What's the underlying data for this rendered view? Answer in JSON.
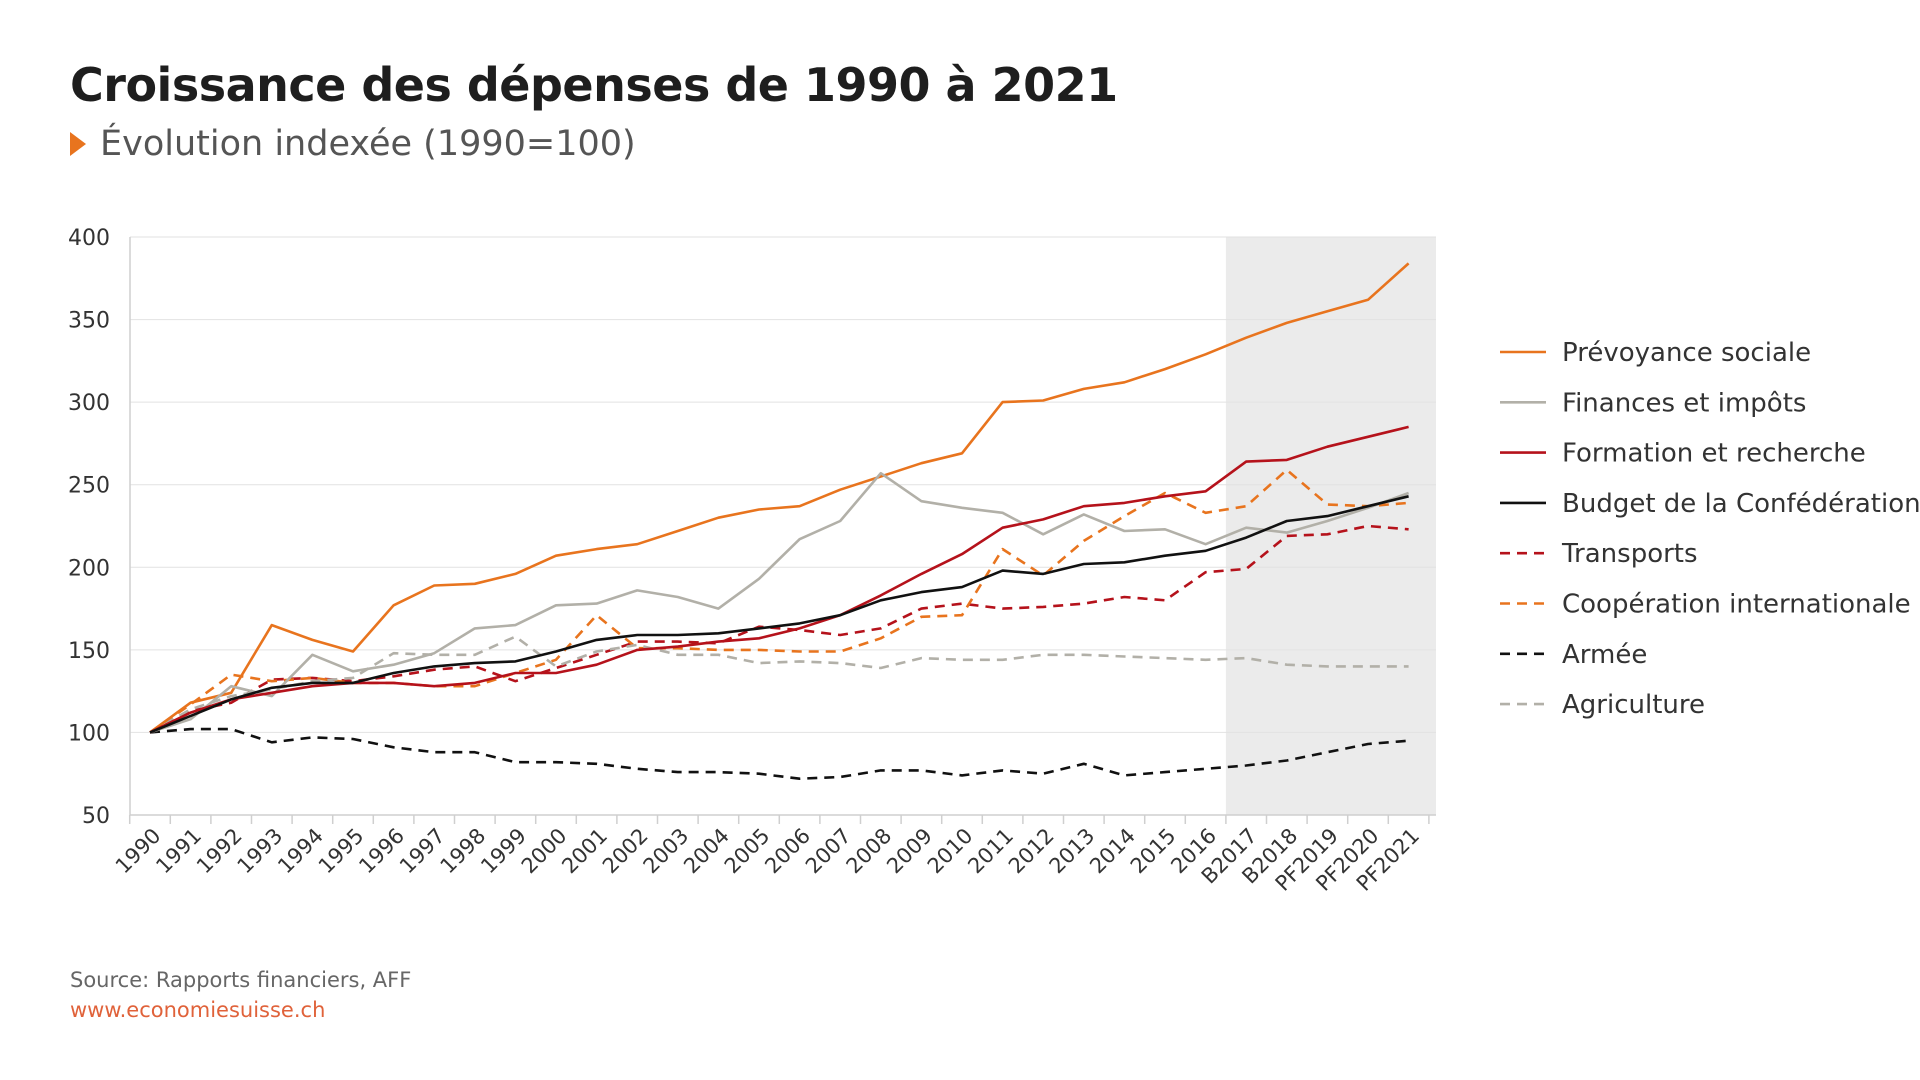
{
  "header": {
    "title": "Croissance des dépenses de 1990 à 2021",
    "subtitle": "Évolution indexée (1990=100)"
  },
  "footer": {
    "source": "Source: Rapports financiers, AFF",
    "url": "www.economiesuisse.ch"
  },
  "chart_data": {
    "type": "line",
    "title": "Croissance des dépenses de 1990 à 2021",
    "subtitle": "Évolution indexée (1990=100)",
    "xlabel": "",
    "ylabel": "",
    "ylim": [
      50,
      400
    ],
    "yticks": [
      50,
      100,
      150,
      200,
      250,
      300,
      350,
      400
    ],
    "grid": "horizontal",
    "legend": "right",
    "shaded_region": {
      "from": "B2017",
      "to": "PF2021",
      "color": "#ebebeb"
    },
    "categories": [
      "1990",
      "1991",
      "1992",
      "1993",
      "1994",
      "1995",
      "1996",
      "1997",
      "1998",
      "1999",
      "2000",
      "2001",
      "2002",
      "2003",
      "2004",
      "2005",
      "2006",
      "2007",
      "2008",
      "2009",
      "2010",
      "2011",
      "2012",
      "2013",
      "2014",
      "2015",
      "2016",
      "B2017",
      "B2018",
      "PF2019",
      "PF2020",
      "PF2021"
    ],
    "series": [
      {
        "name": "Prévoyance sociale",
        "color": "#e8741e",
        "dash": false,
        "values": [
          100,
          118,
          124,
          165,
          156,
          149,
          177,
          189,
          190,
          196,
          207,
          211,
          214,
          222,
          230,
          235,
          237,
          247,
          255,
          263,
          269,
          300,
          301,
          308,
          312,
          320,
          329,
          339,
          348,
          355,
          362,
          384
        ]
      },
      {
        "name": "Finances et impôts",
        "color": "#b2b0a8",
        "dash": false,
        "values": [
          100,
          108,
          128,
          122,
          147,
          137,
          141,
          148,
          163,
          165,
          177,
          178,
          186,
          182,
          175,
          193,
          217,
          228,
          257,
          240,
          236,
          233,
          220,
          232,
          222,
          223,
          214,
          224,
          221,
          228,
          236,
          245
        ]
      },
      {
        "name": "Formation et recherche",
        "color": "#b5121b",
        "dash": false,
        "values": [
          100,
          112,
          120,
          124,
          128,
          130,
          130,
          128,
          130,
          136,
          136,
          141,
          150,
          152,
          155,
          157,
          163,
          171,
          183,
          196,
          208,
          224,
          229,
          237,
          239,
          243,
          246,
          264,
          265,
          273,
          279,
          285
        ]
      },
      {
        "name": "Budget de la Confédération",
        "color": "#111111",
        "dash": false,
        "values": [
          100,
          110,
          120,
          127,
          130,
          130,
          136,
          140,
          142,
          143,
          149,
          156,
          159,
          159,
          160,
          163,
          166,
          171,
          180,
          185,
          188,
          198,
          196,
          202,
          203,
          207,
          210,
          218,
          228,
          231,
          237,
          243
        ]
      },
      {
        "name": "Transports",
        "color": "#b5121b",
        "dash": true,
        "values": [
          100,
          113,
          118,
          132,
          133,
          131,
          134,
          138,
          140,
          131,
          139,
          147,
          155,
          155,
          154,
          164,
          162,
          159,
          163,
          175,
          178,
          175,
          176,
          178,
          182,
          180,
          197,
          199,
          219,
          220,
          225,
          223
        ]
      },
      {
        "name": "Coopération internationale",
        "color": "#e8741e",
        "dash": true,
        "values": [
          100,
          117,
          135,
          131,
          133,
          130,
          130,
          128,
          128,
          136,
          144,
          171,
          151,
          151,
          150,
          150,
          149,
          149,
          157,
          170,
          171,
          211,
          195,
          216,
          231,
          245,
          233,
          237,
          259,
          238,
          237,
          239
        ]
      },
      {
        "name": "Armée",
        "color": "#111111",
        "dash": true,
        "values": [
          100,
          102,
          102,
          94,
          97,
          96,
          91,
          88,
          88,
          82,
          82,
          81,
          78,
          76,
          76,
          75,
          72,
          73,
          77,
          77,
          74,
          77,
          75,
          81,
          74,
          76,
          78,
          80,
          83,
          88,
          93,
          95
        ]
      },
      {
        "name": "Agriculture",
        "color": "#b2b0a8",
        "dash": true,
        "values": [
          100,
          114,
          122,
          126,
          131,
          133,
          148,
          147,
          147,
          158,
          140,
          149,
          153,
          147,
          147,
          142,
          143,
          142,
          139,
          145,
          144,
          144,
          147,
          147,
          146,
          145,
          144,
          145,
          141,
          140,
          140,
          140
        ]
      }
    ]
  }
}
